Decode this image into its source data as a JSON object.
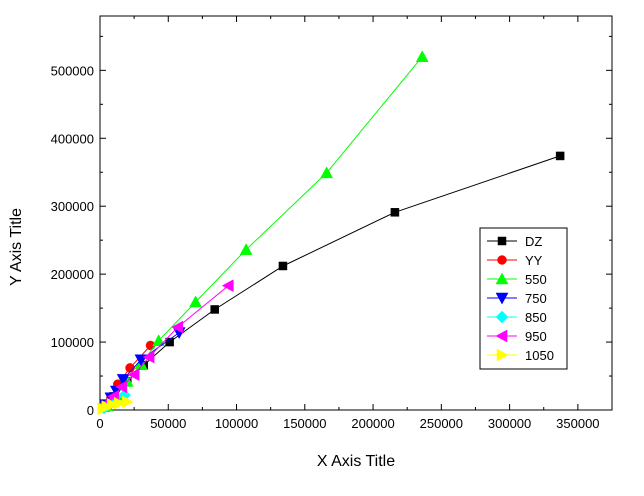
{
  "chart_data": {
    "type": "scatter",
    "xlabel": "X Axis Title",
    "ylabel": "Y Axis Title",
    "xlim": [
      0,
      375000
    ],
    "ylim": [
      0,
      580000
    ],
    "x_ticks": [
      0,
      50000,
      100000,
      150000,
      200000,
      250000,
      300000,
      350000
    ],
    "y_ticks": [
      0,
      100000,
      200000,
      300000,
      400000,
      500000
    ],
    "x_tick_labels": [
      "0",
      "50000",
      "100000",
      "150000",
      "200000",
      "250000",
      "300000",
      "350000"
    ],
    "y_tick_labels": [
      "0",
      "100000",
      "200000",
      "300000",
      "400000",
      "500000"
    ],
    "grid": false,
    "legend_position": "right",
    "series": [
      {
        "name": "DZ",
        "color": "#000000",
        "marker": "square",
        "points": [
          [
            4000,
            4000
          ],
          [
            10000,
            20000
          ],
          [
            20000,
            42000
          ],
          [
            32000,
            66000
          ],
          [
            51000,
            100000
          ],
          [
            84000,
            148000
          ],
          [
            134000,
            212000
          ],
          [
            216000,
            291000
          ],
          [
            337000,
            374000
          ]
        ]
      },
      {
        "name": "YY",
        "color": "#ff0000",
        "marker": "circle",
        "points": [
          [
            3000,
            4000
          ],
          [
            8000,
            18000
          ],
          [
            13000,
            38000
          ],
          [
            22000,
            62000
          ],
          [
            37000,
            95000
          ]
        ]
      },
      {
        "name": "550",
        "color": "#00ff00",
        "marker": "triangle-up",
        "points": [
          [
            5000,
            6000
          ],
          [
            12000,
            22000
          ],
          [
            20000,
            42000
          ],
          [
            30000,
            68000
          ],
          [
            43000,
            102000
          ],
          [
            70000,
            159000
          ],
          [
            107000,
            236000
          ],
          [
            166000,
            349000
          ],
          [
            236000,
            520000
          ]
        ]
      },
      {
        "name": "750",
        "color": "#0000ff",
        "marker": "triangle-down",
        "points": [
          [
            4000,
            8000
          ],
          [
            8000,
            18000
          ],
          [
            12000,
            28000
          ],
          [
            17000,
            45000
          ],
          [
            30000,
            74000
          ],
          [
            58000,
            114000
          ]
        ]
      },
      {
        "name": "850",
        "color": "#00ffff",
        "marker": "diamond",
        "points": [
          [
            3000,
            3000
          ],
          [
            6000,
            8000
          ],
          [
            10000,
            14000
          ],
          [
            18000,
            22000
          ]
        ]
      },
      {
        "name": "950",
        "color": "#ff00ff",
        "marker": "triangle-left",
        "points": [
          [
            5000,
            10000
          ],
          [
            10000,
            20000
          ],
          [
            16000,
            34000
          ],
          [
            25000,
            52000
          ],
          [
            36000,
            78000
          ],
          [
            57000,
            122000
          ],
          [
            94000,
            183000
          ]
        ]
      },
      {
        "name": "1050",
        "color": "#ffff00",
        "marker": "triangle-right",
        "points": [
          [
            2000,
            2000
          ],
          [
            5000,
            5000
          ],
          [
            9000,
            8000
          ],
          [
            14000,
            10000
          ],
          [
            20000,
            12000
          ]
        ]
      }
    ]
  }
}
